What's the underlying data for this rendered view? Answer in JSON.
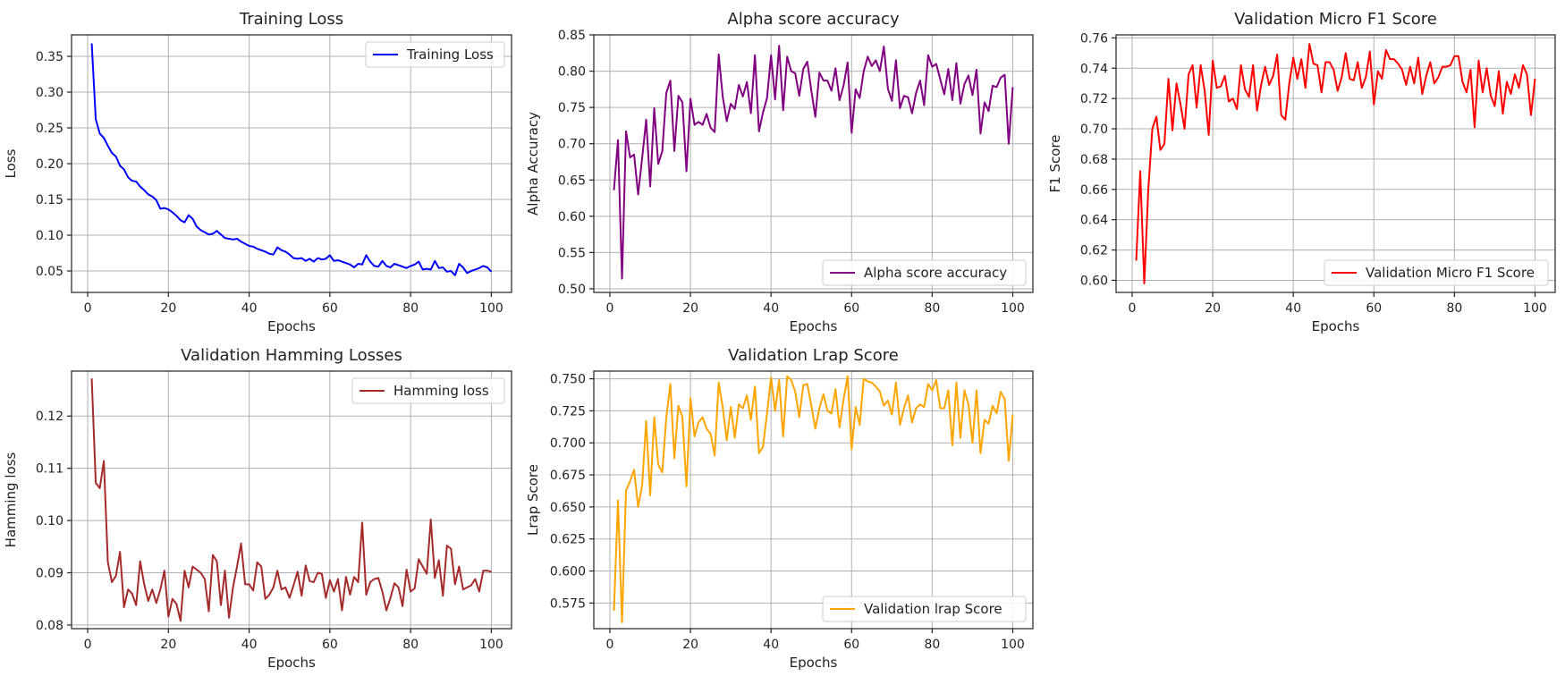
{
  "figure": {
    "background": "#ffffff"
  },
  "chart_data": [
    {
      "type": "line",
      "title": "Training Loss",
      "xlabel": "Epochs",
      "ylabel": "Loss",
      "xlim": [
        -4,
        105
      ],
      "ylim": [
        0.02,
        0.38
      ],
      "xticks": [
        0,
        20,
        40,
        60,
        80,
        100
      ],
      "yticks": [
        0.05,
        0.1,
        0.15,
        0.2,
        0.25,
        0.3,
        0.35
      ],
      "ytick_labels": [
        "0.05",
        "0.10",
        "0.15",
        "0.20",
        "0.25",
        "0.30",
        "0.35"
      ],
      "grid": true,
      "legend": "top-right",
      "x_start": 1,
      "series": [
        {
          "name": "Training Loss",
          "color": "#0000ff",
          "values": [
            0.368,
            0.262,
            0.242,
            0.236,
            0.225,
            0.215,
            0.21,
            0.197,
            0.192,
            0.181,
            0.176,
            0.175,
            0.168,
            0.163,
            0.157,
            0.154,
            0.149,
            0.137,
            0.138,
            0.136,
            0.132,
            0.127,
            0.121,
            0.118,
            0.128,
            0.123,
            0.112,
            0.107,
            0.104,
            0.101,
            0.102,
            0.106,
            0.101,
            0.096,
            0.095,
            0.094,
            0.095,
            0.091,
            0.088,
            0.085,
            0.084,
            0.081,
            0.079,
            0.077,
            0.074,
            0.073,
            0.083,
            0.079,
            0.077,
            0.073,
            0.068,
            0.067,
            0.068,
            0.064,
            0.067,
            0.063,
            0.068,
            0.066,
            0.067,
            0.072,
            0.064,
            0.065,
            0.063,
            0.061,
            0.059,
            0.055,
            0.06,
            0.059,
            0.072,
            0.063,
            0.057,
            0.056,
            0.064,
            0.057,
            0.055,
            0.06,
            0.058,
            0.056,
            0.054,
            0.057,
            0.059,
            0.063,
            0.052,
            0.053,
            0.052,
            0.064,
            0.054,
            0.055,
            0.049,
            0.05,
            0.044,
            0.06,
            0.055,
            0.047,
            0.05,
            0.052,
            0.054,
            0.057,
            0.055,
            0.049
          ]
        }
      ]
    },
    {
      "type": "line",
      "title": "Alpha score accuracy",
      "xlabel": "Epochs",
      "ylabel": "Alpha Accuracy",
      "xlim": [
        -4,
        105
      ],
      "ylim": [
        0.495,
        0.85
      ],
      "xticks": [
        0,
        20,
        40,
        60,
        80,
        100
      ],
      "yticks": [
        0.5,
        0.55,
        0.6,
        0.65,
        0.7,
        0.75,
        0.8,
        0.85
      ],
      "ytick_labels": [
        "0.50",
        "0.55",
        "0.60",
        "0.65",
        "0.70",
        "0.75",
        "0.80",
        "0.85"
      ],
      "grid": true,
      "legend": "bottom-right",
      "x_start": 1,
      "series": [
        {
          "name": "Alpha score accuracy",
          "color": "#800080",
          "values": [
            0.636,
            0.705,
            0.514,
            0.717,
            0.681,
            0.685,
            0.63,
            0.68,
            0.733,
            0.641,
            0.749,
            0.672,
            0.69,
            0.77,
            0.787,
            0.69,
            0.766,
            0.757,
            0.662,
            0.762,
            0.726,
            0.73,
            0.726,
            0.741,
            0.722,
            0.716,
            0.823,
            0.765,
            0.731,
            0.755,
            0.748,
            0.781,
            0.765,
            0.785,
            0.742,
            0.822,
            0.717,
            0.743,
            0.763,
            0.822,
            0.761,
            0.835,
            0.746,
            0.82,
            0.8,
            0.797,
            0.766,
            0.803,
            0.813,
            0.773,
            0.737,
            0.798,
            0.787,
            0.787,
            0.773,
            0.804,
            0.76,
            0.78,
            0.812,
            0.715,
            0.775,
            0.763,
            0.8,
            0.82,
            0.807,
            0.815,
            0.8,
            0.834,
            0.776,
            0.759,
            0.815,
            0.749,
            0.766,
            0.764,
            0.742,
            0.77,
            0.787,
            0.753,
            0.822,
            0.806,
            0.81,
            0.789,
            0.768,
            0.803,
            0.76,
            0.811,
            0.755,
            0.782,
            0.794,
            0.767,
            0.802,
            0.714,
            0.757,
            0.745,
            0.78,
            0.778,
            0.791,
            0.795,
            0.7,
            0.778
          ]
        }
      ]
    },
    {
      "type": "line",
      "title": "Validation Micro F1 Score",
      "xlabel": "Epochs",
      "ylabel": "F1 Score",
      "xlim": [
        -4,
        105
      ],
      "ylim": [
        0.592,
        0.762
      ],
      "xticks": [
        0,
        20,
        40,
        60,
        80,
        100
      ],
      "yticks": [
        0.6,
        0.62,
        0.64,
        0.66,
        0.68,
        0.7,
        0.72,
        0.74,
        0.76
      ],
      "ytick_labels": [
        "0.60",
        "0.62",
        "0.64",
        "0.66",
        "0.68",
        "0.70",
        "0.72",
        "0.74",
        "0.76"
      ],
      "grid": true,
      "legend": "bottom-right",
      "x_start": 1,
      "series": [
        {
          "name": "Validation Micro F1 Score",
          "color": "#ff0000",
          "values": [
            0.613,
            0.672,
            0.598,
            0.66,
            0.7,
            0.708,
            0.686,
            0.69,
            0.733,
            0.699,
            0.73,
            0.716,
            0.7,
            0.736,
            0.742,
            0.714,
            0.742,
            0.725,
            0.696,
            0.745,
            0.727,
            0.728,
            0.735,
            0.718,
            0.72,
            0.713,
            0.742,
            0.726,
            0.721,
            0.742,
            0.712,
            0.729,
            0.741,
            0.729,
            0.735,
            0.749,
            0.709,
            0.706,
            0.73,
            0.747,
            0.733,
            0.746,
            0.727,
            0.756,
            0.743,
            0.742,
            0.724,
            0.744,
            0.744,
            0.739,
            0.725,
            0.734,
            0.75,
            0.733,
            0.732,
            0.744,
            0.727,
            0.734,
            0.751,
            0.716,
            0.738,
            0.733,
            0.752,
            0.746,
            0.746,
            0.743,
            0.739,
            0.729,
            0.741,
            0.73,
            0.747,
            0.723,
            0.735,
            0.744,
            0.73,
            0.734,
            0.741,
            0.741,
            0.742,
            0.748,
            0.748,
            0.731,
            0.724,
            0.739,
            0.701,
            0.745,
            0.724,
            0.74,
            0.722,
            0.715,
            0.738,
            0.71,
            0.731,
            0.723,
            0.736,
            0.727,
            0.742,
            0.736,
            0.709,
            0.733
          ]
        }
      ]
    },
    {
      "type": "line",
      "title": "Validation Hamming Losses",
      "xlabel": "Epochs",
      "ylabel": "Hamming loss",
      "xlim": [
        -4,
        105
      ],
      "ylim": [
        0.0793,
        0.1286
      ],
      "xticks": [
        0,
        20,
        40,
        60,
        80,
        100
      ],
      "yticks": [
        0.08,
        0.09,
        0.1,
        0.11,
        0.12
      ],
      "ytick_labels": [
        "0.08",
        "0.09",
        "0.10",
        "0.11",
        "0.12"
      ],
      "grid": true,
      "legend": "top-right",
      "x_start": 1,
      "series": [
        {
          "name": "Hamming loss",
          "color": "#a52a2a",
          "values": [
            0.1272,
            0.1072,
            0.1062,
            0.1114,
            0.092,
            0.0882,
            0.0894,
            0.094,
            0.0834,
            0.0868,
            0.086,
            0.0838,
            0.0922,
            0.0878,
            0.0846,
            0.0868,
            0.0842,
            0.0868,
            0.0904,
            0.0816,
            0.085,
            0.084,
            0.0808,
            0.0904,
            0.0872,
            0.0912,
            0.0906,
            0.09,
            0.0888,
            0.0826,
            0.0934,
            0.0922,
            0.0838,
            0.0904,
            0.0814,
            0.0872,
            0.0912,
            0.0956,
            0.0878,
            0.0878,
            0.0866,
            0.092,
            0.0912,
            0.085,
            0.0858,
            0.0872,
            0.0904,
            0.0868,
            0.0872,
            0.0852,
            0.0876,
            0.0902,
            0.0856,
            0.0914,
            0.0884,
            0.0882,
            0.09,
            0.0898,
            0.0852,
            0.0886,
            0.0864,
            0.0888,
            0.0828,
            0.0892,
            0.0858,
            0.0892,
            0.0882,
            0.0996,
            0.0858,
            0.0882,
            0.0888,
            0.089,
            0.0864,
            0.0828,
            0.0852,
            0.088,
            0.0872,
            0.0836,
            0.0906,
            0.0864,
            0.087,
            0.0926,
            0.0912,
            0.0898,
            0.1002,
            0.089,
            0.0924,
            0.0856,
            0.0952,
            0.0946,
            0.0878,
            0.0912,
            0.0868,
            0.0872,
            0.0876,
            0.0888,
            0.0864,
            0.0904,
            0.0904,
            0.0902
          ]
        }
      ]
    },
    {
      "type": "line",
      "title": "Validation Lrap Score",
      "xlabel": "Epochs",
      "ylabel": "Lrap Score",
      "xlim": [
        -4,
        105
      ],
      "ylim": [
        0.555,
        0.756
      ],
      "xticks": [
        0,
        20,
        40,
        60,
        80,
        100
      ],
      "yticks": [
        0.575,
        0.6,
        0.625,
        0.65,
        0.675,
        0.7,
        0.725,
        0.75
      ],
      "ytick_labels": [
        "0.575",
        "0.600",
        "0.625",
        "0.650",
        "0.675",
        "0.700",
        "0.725",
        "0.750"
      ],
      "grid": true,
      "legend": "bottom-right",
      "x_start": 1,
      "series": [
        {
          "name": "Validation lrap Score",
          "color": "#ffa500",
          "values": [
            0.569,
            0.655,
            0.56,
            0.663,
            0.67,
            0.679,
            0.65,
            0.667,
            0.717,
            0.659,
            0.72,
            0.683,
            0.677,
            0.72,
            0.746,
            0.688,
            0.729,
            0.72,
            0.666,
            0.735,
            0.705,
            0.716,
            0.72,
            0.711,
            0.707,
            0.69,
            0.747,
            0.728,
            0.702,
            0.728,
            0.704,
            0.73,
            0.727,
            0.737,
            0.718,
            0.744,
            0.692,
            0.697,
            0.723,
            0.751,
            0.725,
            0.749,
            0.705,
            0.752,
            0.749,
            0.74,
            0.72,
            0.745,
            0.746,
            0.729,
            0.711,
            0.727,
            0.738,
            0.725,
            0.723,
            0.742,
            0.712,
            0.734,
            0.752,
            0.695,
            0.728,
            0.714,
            0.75,
            0.748,
            0.747,
            0.744,
            0.74,
            0.729,
            0.733,
            0.722,
            0.747,
            0.714,
            0.727,
            0.737,
            0.716,
            0.727,
            0.73,
            0.728,
            0.746,
            0.741,
            0.749,
            0.727,
            0.727,
            0.741,
            0.698,
            0.747,
            0.704,
            0.741,
            0.73,
            0.7,
            0.741,
            0.692,
            0.718,
            0.715,
            0.729,
            0.723,
            0.74,
            0.734,
            0.686,
            0.722
          ]
        }
      ]
    }
  ]
}
